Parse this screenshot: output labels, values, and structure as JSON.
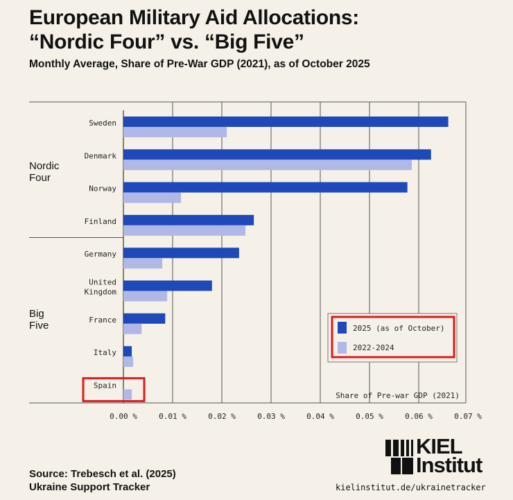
{
  "title_line1": "European Military Aid Allocations:",
  "title_line2": "“Nordic Four” vs. “Big Five”",
  "subtitle": "Monthly Average, Share of Pre-War GDP (2021), as of October 2025",
  "source_line1": "Source: Trebesch et al. (2025)",
  "source_line2": "Ukraine Support Tracker",
  "logo": {
    "line1": "KIEL",
    "line2": "Institut"
  },
  "url": "kielinstitut.de/ukrainetracker",
  "colors": {
    "series_2025": "#1f48b8",
    "series_2022_2024": "#b0b8e6",
    "highlight": "#e0191b",
    "background": "#f5f1e8"
  },
  "chart_data": {
    "type": "bar",
    "orientation": "horizontal",
    "groups": [
      {
        "name": "Nordic Four",
        "categories": [
          "Sweden",
          "Denmark",
          "Norway",
          "Finland"
        ]
      },
      {
        "name": "Big Five",
        "categories": [
          "Germany",
          "United Kingdom",
          "France",
          "Italy",
          "Spain"
        ]
      }
    ],
    "categories": [
      "Sweden",
      "Denmark",
      "Norway",
      "Finland",
      "Germany",
      "United Kingdom",
      "France",
      "Italy",
      "Spain"
    ],
    "series": [
      {
        "name": "2025 (as of October)",
        "values": [
          0.066,
          0.0625,
          0.0577,
          0.0265,
          0.0235,
          0.018,
          0.0085,
          0.0017,
          0.0
        ]
      },
      {
        "name": "2022-2024",
        "values": [
          0.021,
          0.0586,
          0.0117,
          0.0248,
          0.0079,
          0.0089,
          0.0037,
          0.002,
          0.0017
        ]
      }
    ],
    "xlabel": "Share of Pre-war GDP (2021)",
    "xlim": [
      0,
      0.07
    ],
    "xticks": [
      "0.00 %",
      "0.01 %",
      "0.02 %",
      "0.03 %",
      "0.04 %",
      "0.05 %",
      "0.06 %",
      "0.07 %"
    ],
    "grid": true,
    "legend_placement": "bottom-right",
    "highlighted": [
      "legend",
      "Spain"
    ]
  }
}
